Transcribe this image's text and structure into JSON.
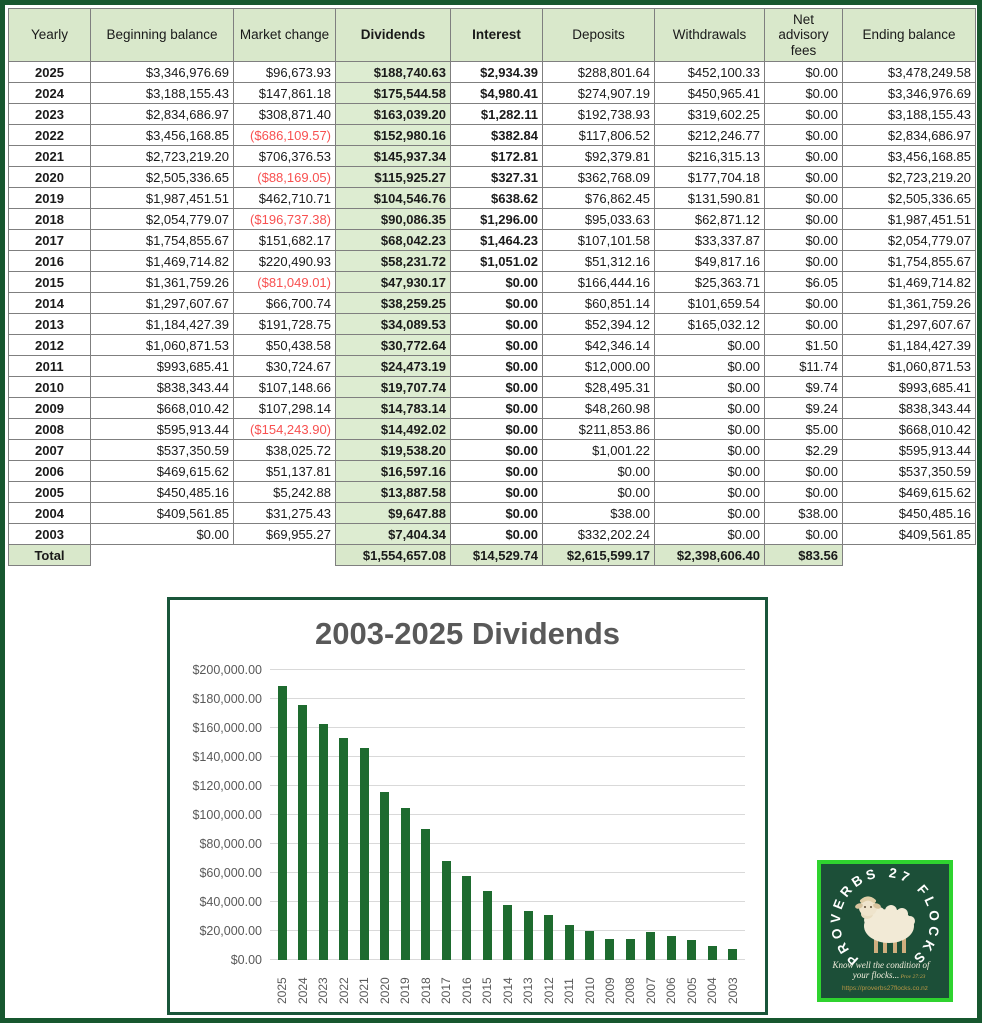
{
  "table": {
    "columns": [
      "Yearly",
      "Beginning balance",
      "Market change",
      "Dividends",
      "Interest",
      "Deposits",
      "Withdrawals",
      "Net advisory fees",
      "Ending balance"
    ],
    "rows": [
      {
        "year": "2025",
        "cells": [
          "$3,346,976.69",
          "$96,673.93",
          "$188,740.63",
          "$2,934.39",
          "$288,801.64",
          "$452,100.33",
          "$0.00",
          "$3,478,249.58"
        ]
      },
      {
        "year": "2024",
        "cells": [
          "$3,188,155.43",
          "$147,861.18",
          "$175,544.58",
          "$4,980.41",
          "$274,907.19",
          "$450,965.41",
          "$0.00",
          "$3,346,976.69"
        ]
      },
      {
        "year": "2023",
        "cells": [
          "$2,834,686.97",
          "$308,871.40",
          "$163,039.20",
          "$1,282.11",
          "$192,738.93",
          "$319,602.25",
          "$0.00",
          "$3,188,155.43"
        ]
      },
      {
        "year": "2022",
        "cells": [
          "$3,456,168.85",
          "($686,109.57)",
          "$152,980.16",
          "$382.84",
          "$117,806.52",
          "$212,246.77",
          "$0.00",
          "$2,834,686.97"
        ]
      },
      {
        "year": "2021",
        "cells": [
          "$2,723,219.20",
          "$706,376.53",
          "$145,937.34",
          "$172.81",
          "$92,379.81",
          "$216,315.13",
          "$0.00",
          "$3,456,168.85"
        ]
      },
      {
        "year": "2020",
        "cells": [
          "$2,505,336.65",
          "($88,169.05)",
          "$115,925.27",
          "$327.31",
          "$362,768.09",
          "$177,704.18",
          "$0.00",
          "$2,723,219.20"
        ]
      },
      {
        "year": "2019",
        "cells": [
          "$1,987,451.51",
          "$462,710.71",
          "$104,546.76",
          "$638.62",
          "$76,862.45",
          "$131,590.81",
          "$0.00",
          "$2,505,336.65"
        ]
      },
      {
        "year": "2018",
        "cells": [
          "$2,054,779.07",
          "($196,737.38)",
          "$90,086.35",
          "$1,296.00",
          "$95,033.63",
          "$62,871.12",
          "$0.00",
          "$1,987,451.51"
        ]
      },
      {
        "year": "2017",
        "cells": [
          "$1,754,855.67",
          "$151,682.17",
          "$68,042.23",
          "$1,464.23",
          "$107,101.58",
          "$33,337.87",
          "$0.00",
          "$2,054,779.07"
        ]
      },
      {
        "year": "2016",
        "cells": [
          "$1,469,714.82",
          "$220,490.93",
          "$58,231.72",
          "$1,051.02",
          "$51,312.16",
          "$49,817.16",
          "$0.00",
          "$1,754,855.67"
        ]
      },
      {
        "year": "2015",
        "cells": [
          "$1,361,759.26",
          "($81,049.01)",
          "$47,930.17",
          "$0.00",
          "$166,444.16",
          "$25,363.71",
          "$6.05",
          "$1,469,714.82"
        ]
      },
      {
        "year": "2014",
        "cells": [
          "$1,297,607.67",
          "$66,700.74",
          "$38,259.25",
          "$0.00",
          "$60,851.14",
          "$101,659.54",
          "$0.00",
          "$1,361,759.26"
        ]
      },
      {
        "year": "2013",
        "cells": [
          "$1,184,427.39",
          "$191,728.75",
          "$34,089.53",
          "$0.00",
          "$52,394.12",
          "$165,032.12",
          "$0.00",
          "$1,297,607.67"
        ]
      },
      {
        "year": "2012",
        "cells": [
          "$1,060,871.53",
          "$50,438.58",
          "$30,772.64",
          "$0.00",
          "$42,346.14",
          "$0.00",
          "$1.50",
          "$1,184,427.39"
        ]
      },
      {
        "year": "2011",
        "cells": [
          "$993,685.41",
          "$30,724.67",
          "$24,473.19",
          "$0.00",
          "$12,000.00",
          "$0.00",
          "$11.74",
          "$1,060,871.53"
        ]
      },
      {
        "year": "2010",
        "cells": [
          "$838,343.44",
          "$107,148.66",
          "$19,707.74",
          "$0.00",
          "$28,495.31",
          "$0.00",
          "$9.74",
          "$993,685.41"
        ]
      },
      {
        "year": "2009",
        "cells": [
          "$668,010.42",
          "$107,298.14",
          "$14,783.14",
          "$0.00",
          "$48,260.98",
          "$0.00",
          "$9.24",
          "$838,343.44"
        ]
      },
      {
        "year": "2008",
        "cells": [
          "$595,913.44",
          "($154,243.90)",
          "$14,492.02",
          "$0.00",
          "$211,853.86",
          "$0.00",
          "$5.00",
          "$668,010.42"
        ]
      },
      {
        "year": "2007",
        "cells": [
          "$537,350.59",
          "$38,025.72",
          "$19,538.20",
          "$0.00",
          "$1,001.22",
          "$0.00",
          "$2.29",
          "$595,913.44"
        ]
      },
      {
        "year": "2006",
        "cells": [
          "$469,615.62",
          "$51,137.81",
          "$16,597.16",
          "$0.00",
          "$0.00",
          "$0.00",
          "$0.00",
          "$537,350.59"
        ]
      },
      {
        "year": "2005",
        "cells": [
          "$450,485.16",
          "$5,242.88",
          "$13,887.58",
          "$0.00",
          "$0.00",
          "$0.00",
          "$0.00",
          "$469,615.62"
        ]
      },
      {
        "year": "2004",
        "cells": [
          "$409,561.85",
          "$31,275.43",
          "$9,647.88",
          "$0.00",
          "$38.00",
          "$0.00",
          "$38.00",
          "$450,485.16"
        ]
      },
      {
        "year": "2003",
        "cells": [
          "$0.00",
          "$69,955.27",
          "$7,404.34",
          "$0.00",
          "$332,202.24",
          "$0.00",
          "$0.00",
          "$409,561.85"
        ]
      }
    ],
    "total": {
      "label": "Total",
      "dividends": "$1,554,657.08",
      "interest": "$14,529.74",
      "deposits": "$2,615,599.17",
      "withdrawals": "$2,398,606.40",
      "fees": "$83.56"
    }
  },
  "chart_data": {
    "type": "bar",
    "title": "2003-2025 Dividends",
    "categories": [
      "2025",
      "2024",
      "2023",
      "2022",
      "2021",
      "2020",
      "2019",
      "2018",
      "2017",
      "2016",
      "2015",
      "2014",
      "2013",
      "2012",
      "2011",
      "2010",
      "2009",
      "2008",
      "2007",
      "2006",
      "2005",
      "2004",
      "2003"
    ],
    "values": [
      188740.63,
      175544.58,
      163039.2,
      152980.16,
      145937.34,
      115925.27,
      104546.76,
      90086.35,
      68042.23,
      58231.72,
      47930.17,
      38259.25,
      34089.53,
      30772.64,
      24473.19,
      19707.74,
      14783.14,
      14492.02,
      19538.2,
      16597.16,
      13887.58,
      9647.88,
      7404.34
    ],
    "xlabel": "",
    "ylabel": "",
    "ylim": [
      0,
      200000
    ],
    "ytick_step": 20000,
    "ytick_labels": [
      "$0.00",
      "$20,000.00",
      "$40,000.00",
      "$60,000.00",
      "$80,000.00",
      "$100,000.00",
      "$120,000.00",
      "$140,000.00",
      "$160,000.00",
      "$180,000.00",
      "$200,000.00"
    ],
    "grid": true,
    "legend": "none",
    "bar_color": "#1e6b2f"
  },
  "logo": {
    "arc_text": "PROVERBS 27 FLOCKS",
    "tagline_line1": "Know well the condition of",
    "tagline_line2": "your flocks...",
    "tagline_ref": "Prov 27:23",
    "url": "https://proverbs27flocks.co.nz"
  },
  "colors": {
    "page_border": "#17572f",
    "header_bg": "#d9e8cb",
    "dividends_bg": "#ddecd1",
    "negative_red": "#f85050",
    "bar_green": "#1e6b2f",
    "chart_border": "#19563a",
    "chart_text_gray": "#595959",
    "logo_bg": "#1c4f38",
    "logo_border": "#2fd32f",
    "logo_gold": "#c9a44c"
  }
}
